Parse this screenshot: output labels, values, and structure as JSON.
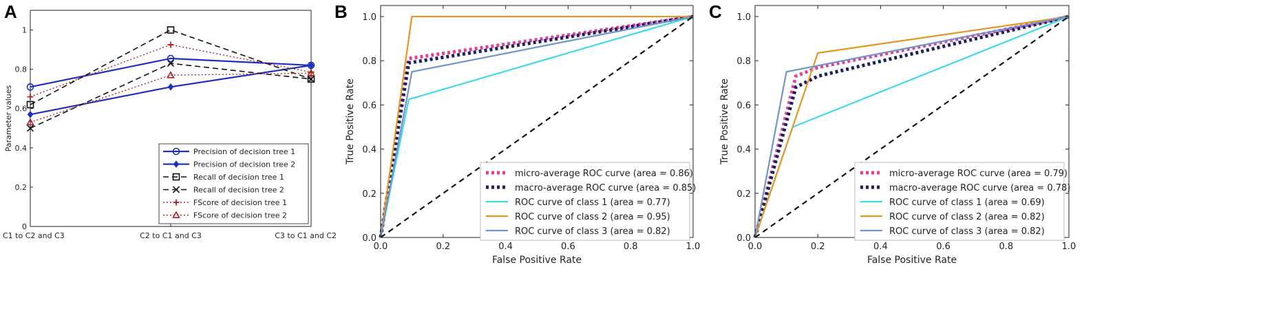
{
  "panels": {
    "A": "A",
    "B": "B",
    "C": "C"
  },
  "chart_data": [
    {
      "id": "A",
      "type": "line",
      "title": "",
      "xlabel": "",
      "ylabel": "Parameter values",
      "ylim": [
        0,
        1.1
      ],
      "yticks": [
        "0",
        "0.2",
        "0.4",
        "0.6",
        "0.8",
        "1"
      ],
      "ytick_values": [
        0,
        0.2,
        0.4,
        0.6,
        0.8,
        1.0
      ],
      "categories": [
        "C1 to C2 and C3",
        "C2 to C1 and C3",
        "C3 to C1 and C2"
      ],
      "series": [
        {
          "name": "Precision of decision tree 1",
          "values": [
            0.71,
            0.855,
            0.82
          ],
          "color": "#1f2fbf",
          "dash": "",
          "width": 2.2,
          "marker": "circle"
        },
        {
          "name": "Precision of decision tree 2",
          "values": [
            0.57,
            0.71,
            0.82
          ],
          "color": "#1f2fbf",
          "dash": "",
          "width": 2.2,
          "marker": "diamond"
        },
        {
          "name": "Recall of decision tree 1",
          "values": [
            0.62,
            1.0,
            0.75
          ],
          "color": "#111111",
          "dash": "8,5",
          "width": 1.6,
          "marker": "square"
        },
        {
          "name": "Recall of decision tree 2",
          "values": [
            0.5,
            0.83,
            0.75
          ],
          "color": "#111111",
          "dash": "8,5",
          "width": 1.6,
          "marker": "x"
        },
        {
          "name": "FScore of decision tree 1",
          "values": [
            0.66,
            0.925,
            0.785
          ],
          "color": "#b22222",
          "dash": "2,3",
          "width": 1.4,
          "marker": "plus"
        },
        {
          "name": "FScore of decision tree 2",
          "values": [
            0.53,
            0.77,
            0.78
          ],
          "color": "#b22222",
          "dash": "2,3",
          "width": 1.4,
          "marker": "triangle"
        }
      ],
      "legend_position": "lower-right"
    },
    {
      "id": "B",
      "type": "line",
      "title": "",
      "xlabel": "False Positive Rate",
      "ylabel": "True Positive Rate",
      "xlim": [
        0,
        1
      ],
      "ylim": [
        0,
        1.05
      ],
      "xticks": [
        "0.0",
        "0.2",
        "0.4",
        "0.6",
        "0.8",
        "1.0"
      ],
      "xtick_values": [
        0,
        0.2,
        0.4,
        0.6,
        0.8,
        1.0
      ],
      "yticks": [
        "0.0",
        "0.2",
        "0.4",
        "0.6",
        "0.8",
        "1.0"
      ],
      "ytick_values": [
        0,
        0.2,
        0.4,
        0.6,
        0.8,
        1.0
      ],
      "series": [
        {
          "name": "micro-average ROC curve (area = 0.86)",
          "x": [
            0,
            0.09,
            1
          ],
          "y": [
            0,
            0.81,
            1
          ],
          "color": "#e0409a",
          "dash": "4,4",
          "width": 5
        },
        {
          "name": "macro-average ROC curve (area = 0.85)",
          "x": [
            0,
            0.09,
            1
          ],
          "y": [
            0,
            0.79,
            1
          ],
          "color": "#1b1f66",
          "dash": "4,4",
          "width": 5
        },
        {
          "name": "ROC curve of class 1 (area = 0.77)",
          "x": [
            0,
            0.09,
            1
          ],
          "y": [
            0,
            0.625,
            1
          ],
          "color": "#3fd9e8",
          "dash": "",
          "width": 2.2
        },
        {
          "name": "ROC curve of class 2 (area = 0.95)",
          "x": [
            0,
            0.1,
            1
          ],
          "y": [
            0,
            1.0,
            1
          ],
          "color": "#e8951f",
          "dash": "",
          "width": 2.2
        },
        {
          "name": "ROC curve of class 3 (area = 0.82)",
          "x": [
            0,
            0.1,
            1
          ],
          "y": [
            0,
            0.75,
            1
          ],
          "color": "#6f95c8",
          "dash": "",
          "width": 2.2
        },
        {
          "name": "chance",
          "x": [
            0,
            1
          ],
          "y": [
            0,
            1
          ],
          "color": "#111111",
          "dash": "8,6",
          "width": 2.2,
          "nolegend": true
        }
      ],
      "legend_position": "lower-right"
    },
    {
      "id": "C",
      "type": "line",
      "title": "",
      "xlabel": "False Positive Rate",
      "ylabel": "True Positive Rate",
      "xlim": [
        0,
        1
      ],
      "ylim": [
        0,
        1.05
      ],
      "xticks": [
        "0.0",
        "0.2",
        "0.4",
        "0.6",
        "0.8",
        "1.0"
      ],
      "xtick_values": [
        0,
        0.2,
        0.4,
        0.6,
        0.8,
        1.0
      ],
      "yticks": [
        "0.0",
        "0.2",
        "0.4",
        "0.6",
        "0.8",
        "1.0"
      ],
      "ytick_values": [
        0,
        0.2,
        0.4,
        0.6,
        0.8,
        1.0
      ],
      "series": [
        {
          "name": "micro-average ROC curve (area = 0.79)",
          "x": [
            0,
            0.13,
            0.2,
            1
          ],
          "y": [
            0,
            0.73,
            0.77,
            1
          ],
          "color": "#e0409a",
          "dash": "4,4",
          "width": 5
        },
        {
          "name": "macro-average ROC curve (area = 0.78)",
          "x": [
            0,
            0.13,
            0.2,
            1
          ],
          "y": [
            0,
            0.68,
            0.73,
            1
          ],
          "color": "#1b1f66",
          "dash": "4,4",
          "width": 5
        },
        {
          "name": "ROC curve of class 1 (area = 0.69)",
          "x": [
            0,
            0.12,
            1
          ],
          "y": [
            0,
            0.5,
            1
          ],
          "color": "#3fd9e8",
          "dash": "",
          "width": 2.2
        },
        {
          "name": "ROC curve of class 2 (area = 0.82)",
          "x": [
            0,
            0.2,
            1
          ],
          "y": [
            0,
            0.835,
            1
          ],
          "color": "#e8951f",
          "dash": "",
          "width": 2.2
        },
        {
          "name": "ROC curve of class 3 (area = 0.82)",
          "x": [
            0,
            0.1,
            1
          ],
          "y": [
            0,
            0.75,
            1
          ],
          "color": "#6f95c8",
          "dash": "",
          "width": 2.2
        },
        {
          "name": "chance",
          "x": [
            0,
            1
          ],
          "y": [
            0,
            1
          ],
          "color": "#111111",
          "dash": "8,6",
          "width": 2.2,
          "nolegend": true
        }
      ],
      "legend_position": "lower-right"
    }
  ]
}
